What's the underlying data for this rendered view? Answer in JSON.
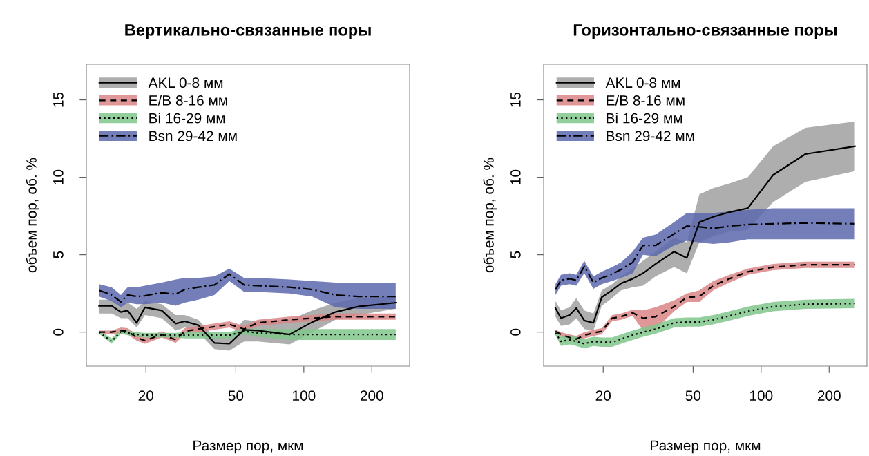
{
  "chart_data": [
    {
      "type": "line",
      "title": "Вертикально-связанные поры",
      "xlabel": "Размер пор, мкм",
      "ylabel": "объем пор, об. %",
      "log": "x",
      "xlim": [
        10.9,
        294
      ],
      "ylim": [
        -2.2,
        17.3
      ],
      "xticks": [
        20,
        50,
        100,
        200
      ],
      "yticks": [
        0,
        5,
        10,
        15
      ],
      "legend": "top left",
      "grid": false,
      "colors": [
        "#a0a0a0",
        "#d98585",
        "#80c68c",
        "#5c68ad"
      ],
      "series": [
        {
          "name": "AKL 0-8 мм",
          "color": "#000000",
          "line_style": "solid",
          "x": [
            12.4,
            14.1,
            15.5,
            16.6,
            18.2,
            19.8,
            23.5,
            27.1,
            29.7,
            34.1,
            40.2,
            46.8,
            54.4,
            62.5,
            86.5,
            109,
            138,
            174,
            255
          ],
          "values": [
            1.7,
            1.7,
            1.3,
            1.4,
            0.6,
            1.6,
            1.4,
            0.55,
            0.7,
            0.45,
            -0.7,
            -0.75,
            0.15,
            0.1,
            -0.15,
            0.65,
            1.3,
            1.65,
            1.9
          ],
          "upper": [
            2.1,
            2.1,
            1.8,
            1.9,
            1.5,
            2.0,
            1.8,
            1.1,
            1.1,
            0.8,
            -0.3,
            -0.3,
            0.8,
            0.7,
            0.8,
            1.4,
            1.9,
            2.2,
            2.3
          ],
          "lower": [
            1.2,
            1.2,
            0.9,
            0.9,
            0.3,
            1.1,
            0.9,
            0.1,
            0.3,
            0.0,
            -1.1,
            -1.2,
            -0.6,
            -0.6,
            -0.8,
            0.0,
            0.8,
            1.1,
            1.5
          ]
        },
        {
          "name": "E/B 8-16 мм",
          "color": "#000000",
          "line_style": "dashed",
          "x": [
            12.4,
            14.1,
            15.5,
            16.6,
            18.2,
            19.8,
            23.5,
            27.1,
            29.7,
            34.1,
            40.2,
            46.8,
            54.4,
            62.5,
            86.5,
            109,
            138,
            174,
            255
          ],
          "values": [
            0,
            0,
            0.1,
            0.05,
            -0.35,
            -0.55,
            -0.15,
            -0.5,
            0.05,
            0.2,
            0.35,
            0.5,
            0.2,
            0.6,
            0.8,
            0.9,
            1.0,
            1.0,
            1.0
          ],
          "upper": [
            0.1,
            0.1,
            0.3,
            0.25,
            -0.15,
            -0.35,
            0.05,
            -0.3,
            0.25,
            0.4,
            0.55,
            0.7,
            0.4,
            0.8,
            1.0,
            1.1,
            1.2,
            1.2,
            1.2
          ],
          "lower": [
            -0.1,
            -0.1,
            -0.1,
            -0.15,
            -0.55,
            -0.75,
            -0.35,
            -0.7,
            -0.15,
            0.0,
            0.15,
            0.3,
            0.0,
            0.4,
            0.6,
            0.7,
            0.8,
            0.8,
            0.8
          ]
        },
        {
          "name": "Bi 16-29 мм",
          "color": "#000000",
          "line_style": "dotted",
          "x": [
            12.4,
            14.1,
            15.5,
            16.6,
            18.2,
            19.8,
            23.5,
            27.1,
            29.7,
            34.1,
            40.2,
            46.8,
            54.4,
            62.5,
            86.5,
            109,
            138,
            174,
            255
          ],
          "values": [
            0,
            -0.6,
            0.05,
            -0.05,
            -0.15,
            -0.2,
            -0.2,
            -0.2,
            -0.2,
            -0.2,
            -0.2,
            -0.2,
            0.05,
            -0.05,
            -0.15,
            -0.15,
            -0.15,
            -0.15,
            -0.15
          ],
          "upper": [
            0.1,
            -0.4,
            0.2,
            0.1,
            0.0,
            -0.05,
            -0.05,
            -0.05,
            0.0,
            0.0,
            0.0,
            0.0,
            0.25,
            0.2,
            0.2,
            0.2,
            0.2,
            0.2,
            0.2
          ],
          "lower": [
            -0.1,
            -0.75,
            -0.1,
            -0.2,
            -0.3,
            -0.35,
            -0.35,
            -0.35,
            -0.4,
            -0.4,
            -0.4,
            -0.4,
            -0.15,
            -0.3,
            -0.5,
            -0.5,
            -0.5,
            -0.5,
            -0.5
          ]
        },
        {
          "name": "Bsn 29-42 мм",
          "color": "#000000",
          "line_style": "dashdot",
          "x": [
            12.4,
            14.1,
            15.5,
            16.6,
            18.2,
            19.8,
            23.5,
            27.1,
            29.7,
            34.1,
            40.2,
            46.8,
            54.4,
            62.5,
            86.5,
            109,
            138,
            174,
            255
          ],
          "values": [
            2.7,
            2.4,
            1.95,
            2.4,
            2.3,
            2.35,
            2.55,
            2.45,
            2.75,
            2.9,
            3.05,
            3.75,
            3.05,
            3.0,
            2.9,
            2.75,
            2.4,
            2.3,
            2.3
          ],
          "upper": [
            3.1,
            2.9,
            2.4,
            2.9,
            2.9,
            3.0,
            3.2,
            3.4,
            3.5,
            3.5,
            3.6,
            4.1,
            3.5,
            3.5,
            3.4,
            3.3,
            3.2,
            3.2,
            3.2
          ],
          "lower": [
            2.3,
            2.0,
            1.6,
            1.9,
            1.8,
            1.8,
            1.9,
            1.7,
            1.9,
            2.1,
            2.4,
            3.3,
            2.6,
            2.6,
            2.5,
            2.3,
            1.6,
            1.5,
            1.5
          ]
        }
      ]
    },
    {
      "type": "line",
      "title": "Горизонтально-связанные поры",
      "xlabel": "Размер пор, мкм",
      "ylabel": "объем пор, об. %",
      "log": "x",
      "xlim": [
        10.9,
        294
      ],
      "ylim": [
        -2.2,
        17.3
      ],
      "xticks": [
        20,
        50,
        100,
        200
      ],
      "yticks": [
        0,
        5,
        10,
        15
      ],
      "legend": "top left",
      "grid": false,
      "colors": [
        "#a0a0a0",
        "#d98585",
        "#80c68c",
        "#5c68ad"
      ],
      "series": [
        {
          "name": "AKL 0-8 мм",
          "color": "#000000",
          "line_style": "solid",
          "x": [
            12.3,
            13.0,
            14.2,
            15.2,
            16.5,
            18.1,
            19.7,
            21.9,
            24.0,
            27.0,
            30.0,
            34.1,
            41.2,
            46.9,
            53.3,
            61.4,
            72.4,
            87.3,
            113,
            157,
            260
          ],
          "values": [
            1.55,
            0.9,
            1.1,
            1.55,
            0.75,
            0.6,
            2.25,
            2.7,
            3.15,
            3.45,
            3.8,
            4.4,
            5.2,
            4.8,
            7.1,
            7.45,
            7.75,
            8.0,
            10.15,
            11.5,
            12.0
          ],
          "upper": [
            2.0,
            1.4,
            1.6,
            2.2,
            1.4,
            1.2,
            2.7,
            3.1,
            3.6,
            4.1,
            4.6,
            5.2,
            6.1,
            5.8,
            8.9,
            9.3,
            9.6,
            10.0,
            12.0,
            13.2,
            13.6
          ],
          "lower": [
            1.0,
            0.4,
            0.5,
            0.9,
            0.2,
            0.1,
            1.7,
            2.2,
            2.7,
            2.9,
            3.0,
            3.6,
            4.2,
            3.8,
            5.8,
            6.2,
            6.5,
            6.6,
            8.4,
            9.7,
            10.4
          ]
        },
        {
          "name": "E/B 8-16 мм",
          "color": "#000000",
          "line_style": "dashed",
          "x": [
            12.3,
            13.0,
            14.2,
            15.2,
            16.5,
            18.1,
            19.7,
            21.9,
            24.0,
            27.0,
            30.0,
            34.1,
            41.2,
            46.9,
            53.3,
            61.4,
            72.4,
            87.3,
            113,
            157,
            260
          ],
          "values": [
            0.05,
            -0.15,
            -0.35,
            -0.45,
            -0.2,
            -0.05,
            0.05,
            0.9,
            1.0,
            1.25,
            0.9,
            1.0,
            1.65,
            2.25,
            2.3,
            3.0,
            3.45,
            3.9,
            4.2,
            4.35,
            4.35
          ],
          "upper": [
            0.15,
            0.0,
            -0.15,
            -0.25,
            0.0,
            0.15,
            0.25,
            1.1,
            1.2,
            1.45,
            1.4,
            1.6,
            2.05,
            2.5,
            2.7,
            3.3,
            3.7,
            4.1,
            4.4,
            4.55,
            4.55
          ],
          "lower": [
            -0.05,
            -0.3,
            -0.55,
            -0.65,
            -0.4,
            -0.25,
            -0.15,
            0.7,
            0.8,
            1.05,
            0.1,
            0.2,
            1.35,
            1.95,
            1.95,
            2.7,
            3.2,
            3.7,
            4.0,
            4.15,
            4.15
          ]
        },
        {
          "name": "Bi 16-29 мм",
          "color": "#000000",
          "line_style": "dotted",
          "x": [
            12.3,
            13.0,
            14.2,
            15.2,
            16.5,
            18.1,
            19.7,
            21.9,
            24.0,
            27.0,
            30.0,
            34.1,
            41.2,
            46.9,
            53.3,
            61.4,
            72.4,
            87.3,
            113,
            157,
            260
          ],
          "values": [
            -0.05,
            -0.6,
            -0.5,
            -0.6,
            -0.75,
            -0.6,
            -0.65,
            -0.65,
            -0.45,
            -0.2,
            0.0,
            0.2,
            0.6,
            0.65,
            0.65,
            0.8,
            1.05,
            1.35,
            1.65,
            1.8,
            1.85
          ],
          "upper": [
            0.1,
            -0.3,
            -0.2,
            -0.3,
            -0.45,
            -0.3,
            -0.35,
            -0.35,
            -0.15,
            0.1,
            0.3,
            0.5,
            0.9,
            0.95,
            0.95,
            1.1,
            1.35,
            1.65,
            1.95,
            2.1,
            2.15
          ],
          "lower": [
            -0.2,
            -0.9,
            -0.8,
            -0.9,
            -1.05,
            -0.9,
            -0.95,
            -0.95,
            -0.75,
            -0.5,
            -0.3,
            -0.1,
            0.3,
            0.35,
            0.35,
            0.5,
            0.75,
            1.05,
            1.35,
            1.5,
            1.55
          ]
        },
        {
          "name": "Bsn 29-42 мм",
          "color": "#000000",
          "line_style": "dashdot",
          "x": [
            12.3,
            13.0,
            14.2,
            15.2,
            16.5,
            18.1,
            19.7,
            21.9,
            24.0,
            27.0,
            30.0,
            34.1,
            41.2,
            46.9,
            53.3,
            61.4,
            72.4,
            87.3,
            113,
            157,
            260
          ],
          "values": [
            2.75,
            3.35,
            3.45,
            3.35,
            4.25,
            3.2,
            3.5,
            3.75,
            4.05,
            4.5,
            5.6,
            5.6,
            6.35,
            6.85,
            6.8,
            6.7,
            6.85,
            6.95,
            7.0,
            7.05,
            7.0
          ],
          "upper": [
            3.1,
            3.7,
            3.8,
            3.7,
            4.6,
            3.6,
            3.9,
            4.2,
            4.5,
            5.2,
            6.1,
            6.3,
            7.1,
            7.7,
            7.7,
            7.7,
            7.8,
            7.9,
            8.0,
            8.0,
            8.0
          ],
          "lower": [
            2.4,
            3.0,
            3.1,
            3.0,
            3.8,
            2.8,
            3.1,
            3.3,
            3.5,
            3.8,
            5.0,
            4.9,
            5.6,
            5.9,
            5.8,
            5.7,
            5.8,
            6.0,
            6.0,
            6.0,
            6.0
          ]
        }
      ]
    }
  ]
}
